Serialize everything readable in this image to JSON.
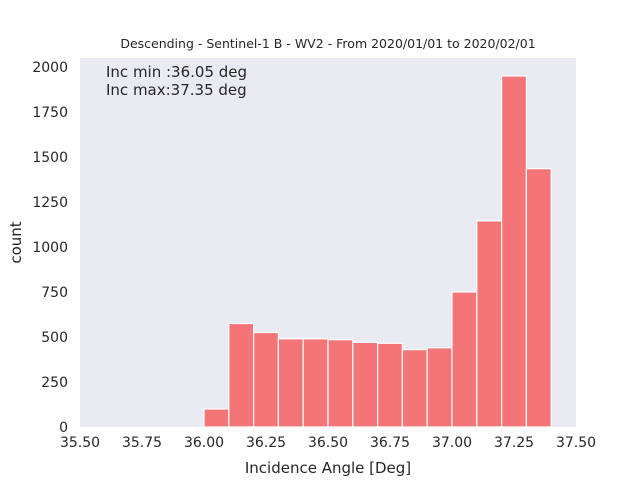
{
  "chart_data": {
    "type": "histogram",
    "title": "Descending - Sentinel-1 B - WV2 - From 2020/01/01 to 2020/02/01",
    "xlabel": "Incidence Angle [Deg]",
    "ylabel": "count",
    "xlim": [
      35.5,
      37.5
    ],
    "ylim": [
      0,
      2050
    ],
    "xticks": [
      "35.50",
      "35.75",
      "36.00",
      "36.25",
      "36.50",
      "36.75",
      "37.00",
      "37.25",
      "37.50"
    ],
    "xtick_values": [
      35.5,
      35.75,
      36.0,
      36.25,
      36.5,
      36.75,
      37.0,
      37.25,
      37.5
    ],
    "yticks": [
      "0",
      "250",
      "500",
      "750",
      "1000",
      "1250",
      "1500",
      "1750",
      "2000"
    ],
    "ytick_values": [
      0,
      250,
      500,
      750,
      1000,
      1250,
      1500,
      1750,
      2000
    ],
    "annotations": [
      "Inc min :36.05 deg",
      "Inc max:37.35 deg"
    ],
    "bin_edges": [
      36.0,
      36.1,
      36.2,
      36.3,
      36.4,
      36.5,
      36.6,
      36.7,
      36.8,
      36.9,
      37.0,
      37.1,
      37.2,
      37.3,
      37.4
    ],
    "counts": [
      100,
      575,
      525,
      490,
      490,
      485,
      470,
      465,
      430,
      440,
      750,
      1145,
      1950,
      1435
    ],
    "bar_color": "#f47478",
    "background_color": "#eaeaf2",
    "grid": false
  }
}
